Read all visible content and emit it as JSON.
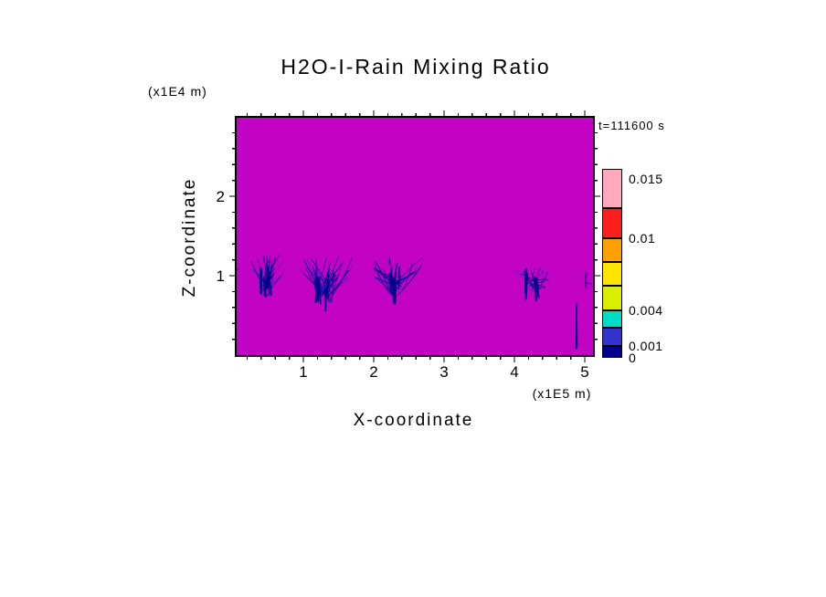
{
  "labels": {
    "x_title": "X-coordinate",
    "x_unit": "(x1E5 m)",
    "z_title": "Z-coordinate",
    "z_unit": "(x1E4 m)",
    "x_ticks": [
      "1",
      "2",
      "3",
      "4",
      "5"
    ],
    "z_ticks": [
      "2",
      "1"
    ]
  },
  "chart_data": {
    "type": "heatmap",
    "title": "H2O-I-Rain Mixing Ratio",
    "time_label": "t=111600 s",
    "xlabel": "X-coordinate (x1E5 m)",
    "ylabel": "Z-coordinate (x1E4 m)",
    "x_range": [
      0,
      5.1
    ],
    "z_range": [
      0,
      3
    ],
    "x_tick_values": [
      1,
      2,
      3,
      4,
      5
    ],
    "z_tick_values": [
      1,
      2
    ],
    "grid": false,
    "legend_position": "right-colorbar",
    "background_color": "#C303C3",
    "streak_color": "#00008B",
    "streak_color_bright": "#2B2BD4",
    "levels": [
      0,
      0.001,
      0.0025,
      0.004,
      0.006,
      0.008,
      0.01,
      0.0125,
      0.0158
    ],
    "colorbar_segments": [
      {
        "from": 0,
        "to": 0.001,
        "color": "#00008C"
      },
      {
        "from": 0.001,
        "to": 0.0025,
        "color": "#3333CC"
      },
      {
        "from": 0.0025,
        "to": 0.004,
        "color": "#00DCC8"
      },
      {
        "from": 0.004,
        "to": 0.006,
        "color": "#D9EE00"
      },
      {
        "from": 0.006,
        "to": 0.008,
        "color": "#FFE400"
      },
      {
        "from": 0.008,
        "to": 0.01,
        "color": "#FFA000"
      },
      {
        "from": 0.01,
        "to": 0.0125,
        "color": "#FF1E1E"
      },
      {
        "from": 0.0125,
        "to": 0.0158,
        "color": "#FFA8BE"
      }
    ],
    "colorbar_labels": [
      {
        "text": "0.015",
        "value": 0.015
      },
      {
        "text": "0.01",
        "value": 0.01
      },
      {
        "text": "0.004",
        "value": 0.004
      },
      {
        "text": "0.001",
        "value": 0.001
      },
      {
        "text": "0",
        "value": 0
      }
    ],
    "rain_clusters": [
      {
        "x_center": 0.48,
        "half_width": 0.26,
        "z_top": 1.28,
        "z_bottom": 0.72,
        "streaks": 28,
        "core": true
      },
      {
        "x_center": 1.33,
        "half_width": 0.4,
        "z_top": 1.24,
        "z_bottom": 0.65,
        "streaks": 40,
        "core": true
      },
      {
        "x_center": 2.35,
        "half_width": 0.36,
        "z_top": 1.24,
        "z_bottom": 0.75,
        "streaks": 30,
        "core": true
      },
      {
        "x_center": 4.29,
        "half_width": 0.28,
        "z_top": 1.12,
        "z_bottom": 0.78,
        "streaks": 18,
        "core": true
      },
      {
        "x_center": 4.88,
        "half_width": 0.015,
        "z_top": 0.66,
        "z_bottom": 0.05,
        "streaks": 4,
        "type": "column"
      },
      {
        "x_center": 5.05,
        "half_width": 0.05,
        "z_top": 1.08,
        "z_bottom": 0.9,
        "streaks": 4
      },
      {
        "x_center": 0.06,
        "half_width": 0.04,
        "z_top": 1.1,
        "z_bottom": 0.92,
        "streaks": 3
      }
    ]
  }
}
